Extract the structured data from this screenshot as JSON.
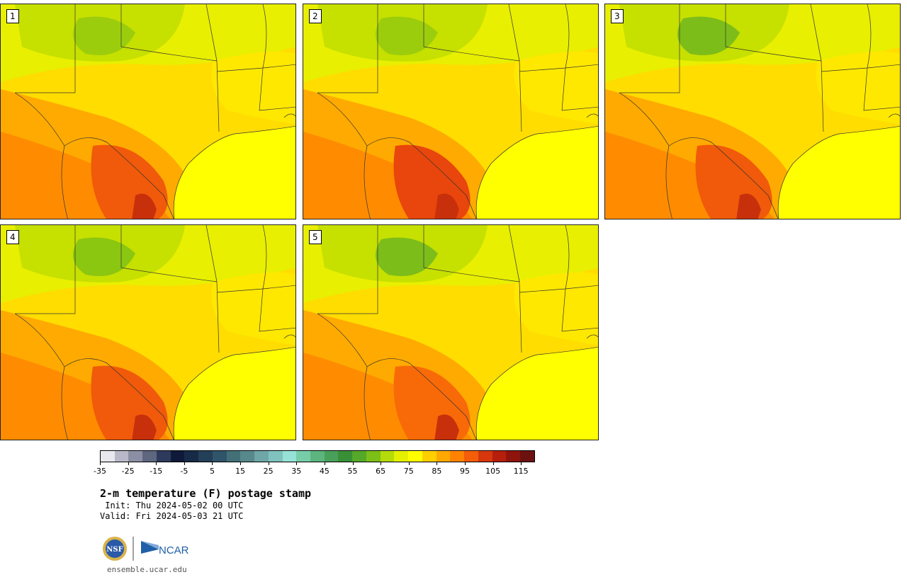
{
  "panels": [
    {
      "label": "1"
    },
    {
      "label": "2"
    },
    {
      "label": "3"
    },
    {
      "label": "4"
    },
    {
      "label": "5"
    }
  ],
  "colorbar": {
    "colors": [
      "#e8e8ee",
      "#b8b8c8",
      "#8c8fa3",
      "#5e6680",
      "#2e3a5c",
      "#0f1a38",
      "#172b48",
      "#234058",
      "#30546a",
      "#437077",
      "#57888c",
      "#6fa6a8",
      "#80c2bd",
      "#96e2d6",
      "#77cda8",
      "#5cb57e",
      "#48a05a",
      "#3a9037",
      "#55a829",
      "#7bbf17",
      "#b5db0a",
      "#e5f000",
      "#ffff00",
      "#ffcf00",
      "#ffa800",
      "#ff8300",
      "#f45d0a",
      "#d7370c",
      "#b51f0c",
      "#8e140c",
      "#6b1210"
    ],
    "tick_labels": [
      "-35",
      "-25",
      "-15",
      "-5",
      "5",
      "15",
      "25",
      "35",
      "45",
      "55",
      "65",
      "75",
      "85",
      "95",
      "105",
      "115"
    ]
  },
  "title": "2-m temperature (F) postage stamp",
  "init": " Init: Thu 2024-05-02 00 UTC",
  "valid": "Valid: Fri 2024-05-03 21 UTC",
  "logos": {
    "nsf_text": "NSF",
    "ncar_text": "NCAR"
  },
  "website": "ensemble.ucar.edu"
}
